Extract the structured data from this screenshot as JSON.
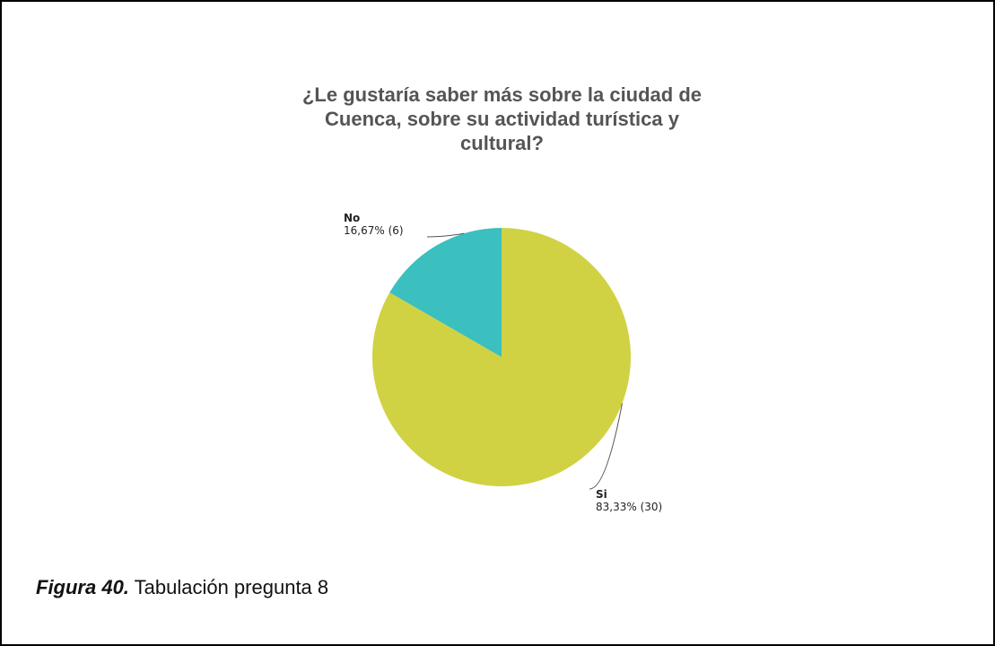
{
  "chart_data": {
    "type": "pie",
    "title_lines": [
      "¿Le gustaría saber más sobre la ciudad de",
      "Cuenca, sobre su actividad turística y",
      "cultural?"
    ],
    "slices": [
      {
        "label": "Si",
        "percent": 83.33,
        "count": 30,
        "value_text": "83,33% (30)",
        "color": "#D0D244"
      },
      {
        "label": "No",
        "percent": 16.67,
        "count": 6,
        "value_text": "16,67% (6)",
        "color": "#3BBFBF"
      }
    ]
  },
  "caption": {
    "figure": "Figura 40.",
    "text": " Tabulación pregunta 8"
  }
}
